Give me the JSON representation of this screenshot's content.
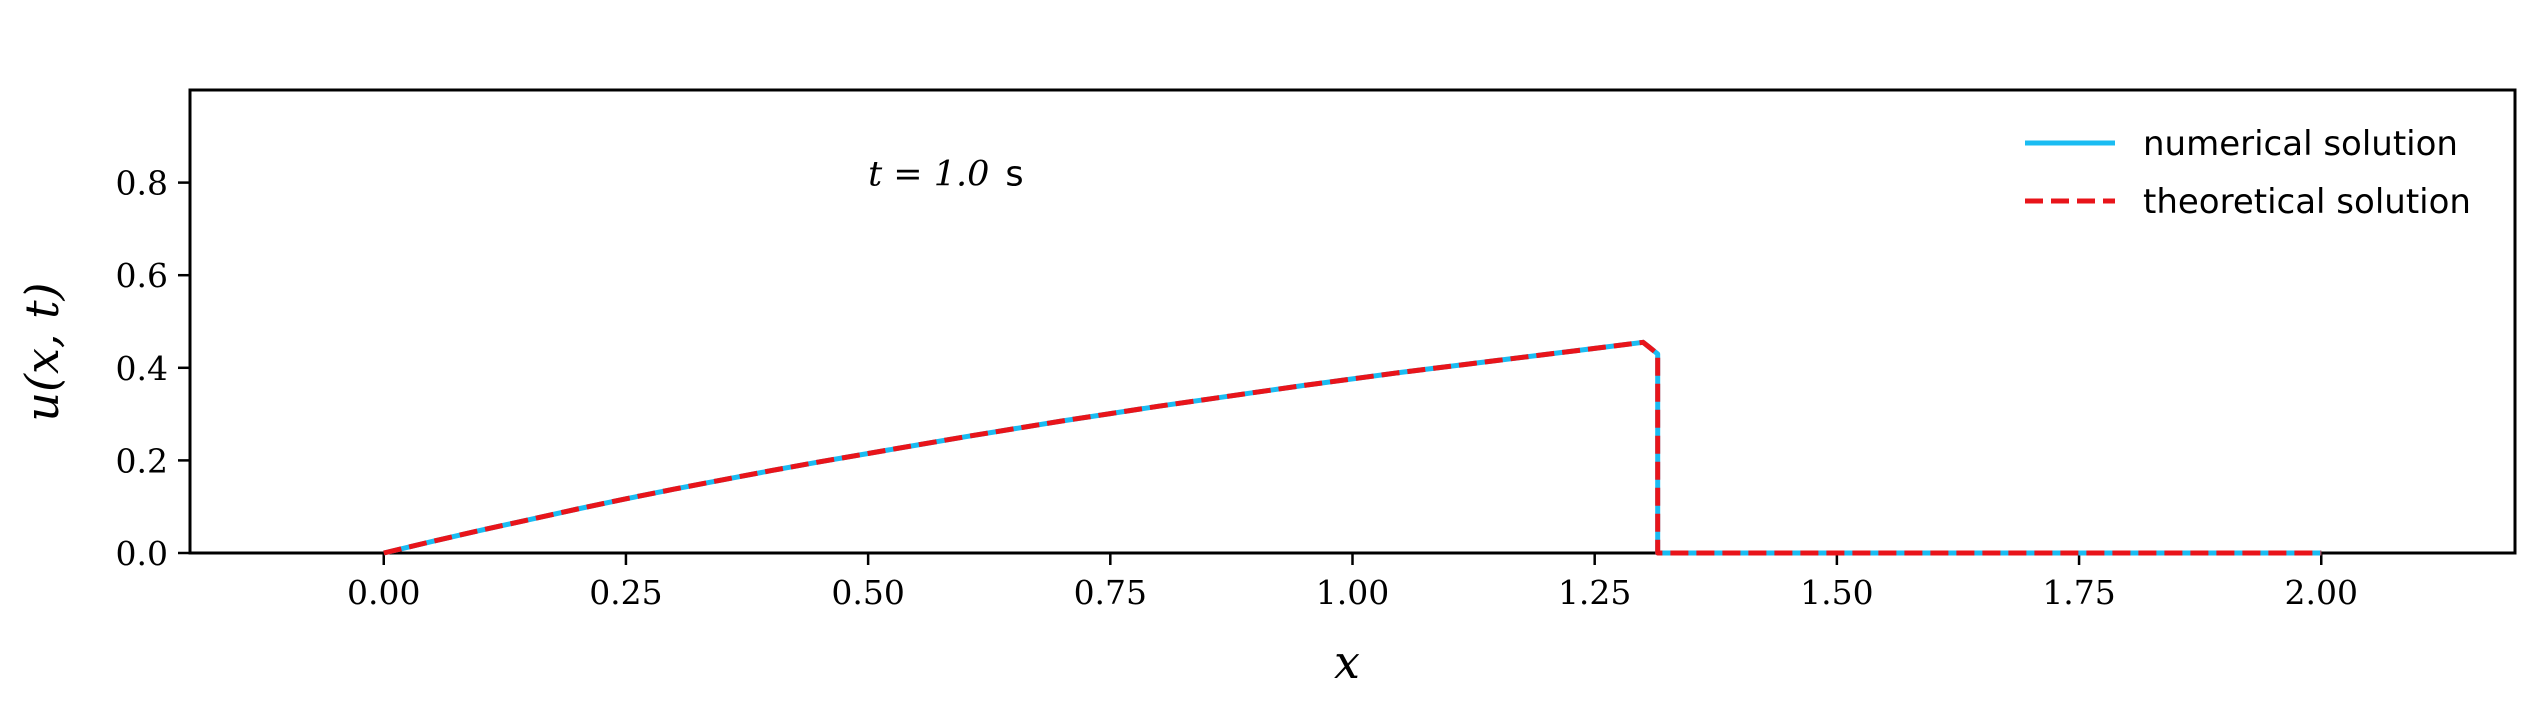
{
  "chart_data": {
    "type": "line",
    "title": "",
    "xlabel": "x",
    "ylabel": "u(x, t)",
    "xlim": [
      -0.2,
      2.2
    ],
    "ylim": [
      0.0,
      1.0
    ],
    "xticks": [
      0.0,
      0.25,
      0.5,
      0.75,
      1.0,
      1.25,
      1.5,
      1.75,
      2.0
    ],
    "xtick_labels": [
      "0.00",
      "0.25",
      "0.50",
      "0.75",
      "1.00",
      "1.25",
      "1.50",
      "1.75",
      "2.00"
    ],
    "yticks": [
      0.0,
      0.2,
      0.4,
      0.6,
      0.8
    ],
    "ytick_labels": [
      "0.0",
      "0.2",
      "0.4",
      "0.6",
      "0.8"
    ],
    "grid": false,
    "legend_position": "top-right",
    "annotation": {
      "math": "t = 1.0",
      "unit": "s",
      "x": 0.5,
      "y": 0.82
    },
    "series": [
      {
        "name": "numerical solution",
        "color": "#1ABCF2",
        "style": "solid",
        "x": [
          0.0,
          0.05,
          0.1,
          0.15,
          0.2,
          0.25,
          0.3,
          0.35,
          0.4,
          0.45,
          0.5,
          0.55,
          0.6,
          0.65,
          0.7,
          0.75,
          0.8,
          0.85,
          0.9,
          0.95,
          1.0,
          1.05,
          1.1,
          1.15,
          1.2,
          1.25,
          1.3,
          1.315,
          1.315,
          1.4,
          1.5,
          1.6,
          1.7,
          1.8,
          1.9,
          2.0
        ],
        "y": [
          0.0,
          0.025,
          0.049,
          0.072,
          0.095,
          0.117,
          0.138,
          0.158,
          0.178,
          0.197,
          0.215,
          0.233,
          0.251,
          0.268,
          0.285,
          0.301,
          0.317,
          0.332,
          0.347,
          0.362,
          0.376,
          0.39,
          0.403,
          0.416,
          0.429,
          0.442,
          0.455,
          0.43,
          0.0,
          0.0,
          0.0,
          0.0,
          0.0,
          0.0,
          0.0,
          0.0
        ]
      },
      {
        "name": "theoretical solution",
        "color": "#E8141A",
        "style": "dashed",
        "x": [
          0.0,
          0.05,
          0.1,
          0.15,
          0.2,
          0.25,
          0.3,
          0.35,
          0.4,
          0.45,
          0.5,
          0.55,
          0.6,
          0.65,
          0.7,
          0.75,
          0.8,
          0.85,
          0.9,
          0.95,
          1.0,
          1.05,
          1.1,
          1.15,
          1.2,
          1.25,
          1.3,
          1.315,
          1.315,
          1.4,
          1.5,
          1.6,
          1.7,
          1.8,
          1.9,
          2.0
        ],
        "y": [
          0.0,
          0.025,
          0.049,
          0.072,
          0.095,
          0.117,
          0.138,
          0.158,
          0.178,
          0.197,
          0.215,
          0.233,
          0.251,
          0.268,
          0.285,
          0.301,
          0.317,
          0.332,
          0.347,
          0.362,
          0.376,
          0.39,
          0.403,
          0.416,
          0.429,
          0.442,
          0.455,
          0.43,
          0.0,
          0.0,
          0.0,
          0.0,
          0.0,
          0.0,
          0.0,
          0.0
        ]
      }
    ]
  }
}
